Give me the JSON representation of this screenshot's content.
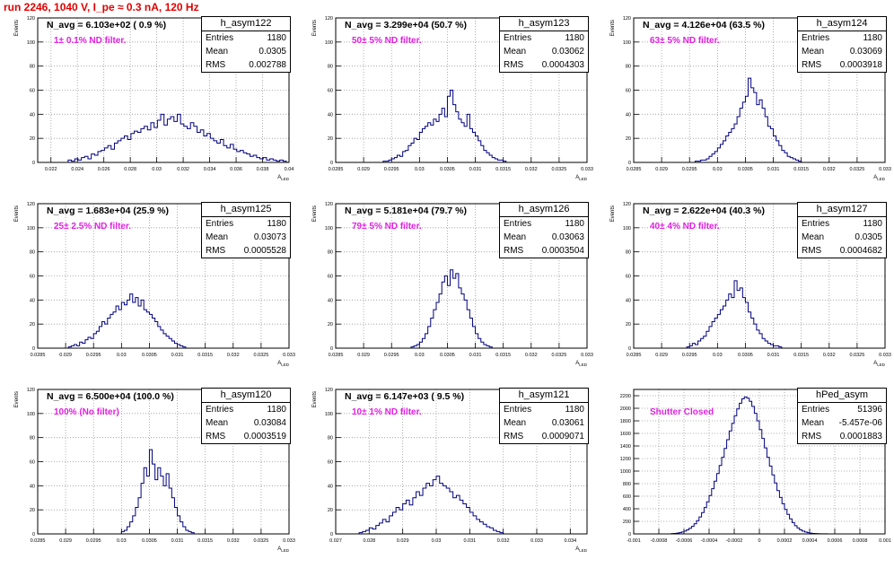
{
  "page_title": "run 2246,  1040 V, I_pe ≈ 0.3 nA, 120 Hz",
  "colors": {
    "title": "#e00000",
    "line": "#000080",
    "filter_text": "#e020e0"
  },
  "chart_data": [
    {
      "type": "histogram",
      "name": "h_asym122",
      "ylabel": "Events",
      "xlabel": "A_{LED}",
      "xlim": [
        0.021,
        0.04
      ],
      "ylim": [
        0,
        120
      ],
      "x_ticks": [
        "0.022",
        "0.024",
        "0.026",
        "0.028",
        "0.03",
        "0.032",
        "0.034",
        "0.036",
        "0.038",
        "0.04"
      ],
      "x_tick_values": [
        0.022,
        0.024,
        0.026,
        0.028,
        0.03,
        0.032,
        0.034,
        0.036,
        0.038,
        0.04
      ],
      "y_ticks": [
        "0",
        "20",
        "40",
        "60",
        "80",
        "100",
        "120"
      ],
      "y_tick_values": [
        0,
        20,
        40,
        60,
        80,
        100,
        120
      ],
      "annotation_navg": "N_avg = 6.103e+02 ( 0.9 %)",
      "annotation_filter": "1± 0.1% ND filter.",
      "stats": {
        "entries": "1180",
        "mean": "0.0305",
        "rms": "0.002788"
      },
      "bins": {
        "start": 0.0233,
        "width": 0.00025,
        "counts": [
          2,
          1,
          3,
          2,
          4,
          5,
          3,
          7,
          6,
          9,
          10,
          12,
          14,
          11,
          16,
          18,
          20,
          22,
          19,
          24,
          26,
          25,
          28,
          30,
          27,
          33,
          29,
          35,
          40,
          31,
          36,
          38,
          34,
          40,
          32,
          30,
          28,
          33,
          30,
          25,
          27,
          22,
          24,
          20,
          18,
          16,
          19,
          14,
          12,
          15,
          11,
          9,
          10,
          8,
          7,
          5,
          6,
          4,
          3,
          4,
          2,
          3,
          2,
          1,
          2,
          1
        ]
      }
    },
    {
      "type": "histogram",
      "name": "h_asym123",
      "ylabel": "Events",
      "xlabel": "A_{LED}",
      "xlim": [
        0.0285,
        0.033
      ],
      "ylim": [
        0,
        120
      ],
      "x_ticks": [
        "0.0285",
        "0.029",
        "0.0295",
        "0.03",
        "0.0305",
        "0.031",
        "0.0315",
        "0.032",
        "0.0325",
        "0.033"
      ],
      "x_tick_values": [
        0.0285,
        0.029,
        0.0295,
        0.03,
        0.0305,
        0.031,
        0.0315,
        0.032,
        0.0325,
        0.033
      ],
      "y_ticks": [
        "0",
        "20",
        "40",
        "60",
        "80",
        "100",
        "120"
      ],
      "y_tick_values": [
        0,
        20,
        40,
        60,
        80,
        100,
        120
      ],
      "annotation_navg": "N_avg = 3.299e+04 (50.7 %)",
      "annotation_filter": "50± 5% ND filter.",
      "stats": {
        "entries": "1180",
        "mean": "0.03062",
        "rms": "0.0004303"
      },
      "bins": {
        "start": 0.02935,
        "width": 5e-05,
        "counts": [
          1,
          1,
          2,
          3,
          4,
          6,
          5,
          9,
          10,
          14,
          16,
          20,
          19,
          25,
          28,
          30,
          33,
          31,
          36,
          34,
          40,
          45,
          38,
          55,
          60,
          48,
          42,
          36,
          33,
          30,
          40,
          28,
          25,
          22,
          18,
          14,
          10,
          8,
          6,
          4,
          3,
          2,
          2,
          1
        ]
      }
    },
    {
      "type": "histogram",
      "name": "h_asym124",
      "ylabel": "Events",
      "xlabel": "A_{LED}",
      "xlim": [
        0.0285,
        0.033
      ],
      "ylim": [
        0,
        120
      ],
      "x_ticks": [
        "0.0285",
        "0.029",
        "0.0295",
        "0.03",
        "0.0305",
        "0.031",
        "0.0315",
        "0.032",
        "0.0325",
        "0.033"
      ],
      "x_tick_values": [
        0.0285,
        0.029,
        0.0295,
        0.03,
        0.0305,
        0.031,
        0.0315,
        0.032,
        0.0325,
        0.033
      ],
      "y_ticks": [
        "0",
        "20",
        "40",
        "60",
        "80",
        "100",
        "120"
      ],
      "y_tick_values": [
        0,
        20,
        40,
        60,
        80,
        100,
        120
      ],
      "annotation_navg": "N_avg = 4.126e+04 (63.5 %)",
      "annotation_filter": "63± 5% ND filter.",
      "stats": {
        "entries": "1180",
        "mean": "0.03069",
        "rms": "0.0003918"
      },
      "bins": {
        "start": 0.0296,
        "width": 5e-05,
        "counts": [
          1,
          1,
          2,
          2,
          3,
          5,
          7,
          9,
          12,
          15,
          18,
          22,
          25,
          28,
          32,
          38,
          45,
          50,
          55,
          70,
          62,
          58,
          48,
          52,
          45,
          38,
          30,
          28,
          22,
          18,
          14,
          10,
          8,
          5,
          4,
          3,
          2,
          1
        ]
      }
    },
    {
      "type": "histogram",
      "name": "h_asym125",
      "ylabel": "Events",
      "xlabel": "A_{LED}",
      "xlim": [
        0.0285,
        0.033
      ],
      "ylim": [
        0,
        120
      ],
      "x_ticks": [
        "0.0285",
        "0.029",
        "0.0295",
        "0.03",
        "0.0305",
        "0.031",
        "0.0315",
        "0.032",
        "0.0325",
        "0.033"
      ],
      "x_tick_values": [
        0.0285,
        0.029,
        0.0295,
        0.03,
        0.0305,
        0.031,
        0.0315,
        0.032,
        0.0325,
        0.033
      ],
      "y_ticks": [
        "0",
        "20",
        "40",
        "60",
        "80",
        "100",
        "120"
      ],
      "y_tick_values": [
        0,
        20,
        40,
        60,
        80,
        100,
        120
      ],
      "annotation_navg": "N_avg = 1.683e+04 (25.9 %)",
      "annotation_filter": "25± 2.5% ND filter.",
      "stats": {
        "entries": "1180",
        "mean": "0.03073",
        "rms": "0.0005528"
      },
      "bins": {
        "start": 0.02905,
        "width": 5e-05,
        "counts": [
          1,
          2,
          3,
          2,
          5,
          4,
          7,
          9,
          8,
          12,
          14,
          18,
          22,
          20,
          25,
          28,
          30,
          35,
          32,
          38,
          36,
          40,
          45,
          38,
          42,
          35,
          40,
          32,
          30,
          28,
          25,
          22,
          18,
          15,
          12,
          10,
          8,
          6,
          4,
          3,
          2,
          1
        ]
      }
    },
    {
      "type": "histogram",
      "name": "h_asym126",
      "ylabel": "Events",
      "xlabel": "A_{LED}",
      "xlim": [
        0.0285,
        0.033
      ],
      "ylim": [
        0,
        120
      ],
      "x_ticks": [
        "0.0285",
        "0.029",
        "0.0295",
        "0.03",
        "0.0305",
        "0.031",
        "0.0315",
        "0.032",
        "0.0325",
        "0.033"
      ],
      "x_tick_values": [
        0.0285,
        0.029,
        0.0295,
        0.03,
        0.0305,
        0.031,
        0.0315,
        0.032,
        0.0325,
        0.033
      ],
      "y_ticks": [
        "0",
        "20",
        "40",
        "60",
        "80",
        "100",
        "120"
      ],
      "y_tick_values": [
        0,
        20,
        40,
        60,
        80,
        100,
        120
      ],
      "annotation_navg": "N_avg = 5.181e+04 (79.7 %)",
      "annotation_filter": "79± 5% ND filter.",
      "stats": {
        "entries": "1180",
        "mean": "0.03063",
        "rms": "0.0003504"
      },
      "bins": {
        "start": 0.02985,
        "width": 5e-05,
        "counts": [
          1,
          2,
          3,
          5,
          8,
          12,
          18,
          25,
          32,
          38,
          45,
          55,
          60,
          52,
          65,
          58,
          62,
          50,
          45,
          40,
          32,
          25,
          18,
          12,
          8,
          5,
          3,
          2,
          1
        ]
      }
    },
    {
      "type": "histogram",
      "name": "h_asym127",
      "ylabel": "Events",
      "xlabel": "A_{LED}",
      "xlim": [
        0.0285,
        0.033
      ],
      "ylim": [
        0,
        120
      ],
      "x_ticks": [
        "0.0285",
        "0.029",
        "0.0295",
        "0.03",
        "0.0305",
        "0.031",
        "0.0315",
        "0.032",
        "0.0325",
        "0.033"
      ],
      "x_tick_values": [
        0.0285,
        0.029,
        0.0295,
        0.03,
        0.0305,
        0.031,
        0.0315,
        0.032,
        0.0325,
        0.033
      ],
      "y_ticks": [
        "0",
        "20",
        "40",
        "60",
        "80",
        "100",
        "120"
      ],
      "y_tick_values": [
        0,
        20,
        40,
        60,
        80,
        100,
        120
      ],
      "annotation_navg": "N_avg = 2.622e+04 (40.3 %)",
      "annotation_filter": "40± 4% ND filter.",
      "stats": {
        "entries": "1180",
        "mean": "0.0305",
        "rms": "0.0004682"
      },
      "bins": {
        "start": 0.02945,
        "width": 5e-05,
        "counts": [
          1,
          2,
          4,
          3,
          6,
          8,
          10,
          14,
          18,
          22,
          25,
          28,
          32,
          35,
          40,
          45,
          42,
          56,
          48,
          50,
          42,
          38,
          30,
          25,
          20,
          15,
          12,
          8,
          6,
          4,
          3,
          2,
          2,
          1
        ]
      }
    },
    {
      "type": "histogram",
      "name": "h_asym120",
      "ylabel": "Events",
      "xlabel": "A_{LED}",
      "xlim": [
        0.0285,
        0.033
      ],
      "ylim": [
        0,
        120
      ],
      "x_ticks": [
        "0.0285",
        "0.029",
        "0.0295",
        "0.03",
        "0.0305",
        "0.031",
        "0.0315",
        "0.032",
        "0.0325",
        "0.033"
      ],
      "x_tick_values": [
        0.0285,
        0.029,
        0.0295,
        0.03,
        0.0305,
        0.031,
        0.0315,
        0.032,
        0.0325,
        0.033
      ],
      "y_ticks": [
        "0",
        "20",
        "40",
        "60",
        "80",
        "100",
        "120"
      ],
      "y_tick_values": [
        0,
        20,
        40,
        60,
        80,
        100,
        120
      ],
      "annotation_navg": "N_avg = 6.500e+04 (100.0 %)",
      "annotation_filter": "100% (No filter)",
      "stats": {
        "entries": "1180",
        "mean": "0.03084",
        "rms": "0.0003519"
      },
      "bins": {
        "start": 0.03,
        "width": 5e-05,
        "counts": [
          2,
          3,
          6,
          10,
          15,
          22,
          30,
          42,
          55,
          48,
          70,
          58,
          45,
          55,
          48,
          40,
          50,
          38,
          30,
          22,
          15,
          10,
          6,
          3,
          2,
          1
        ]
      }
    },
    {
      "type": "histogram",
      "name": "h_asym121",
      "ylabel": "Events",
      "xlabel": "A_{LED}",
      "xlim": [
        0.027,
        0.0345
      ],
      "ylim": [
        0,
        120
      ],
      "x_ticks": [
        "0.027",
        "0.028",
        "0.029",
        "0.03",
        "0.031",
        "0.032",
        "0.033",
        "0.034"
      ],
      "x_tick_values": [
        0.027,
        0.028,
        0.029,
        0.03,
        0.031,
        0.032,
        0.033,
        0.034
      ],
      "y_ticks": [
        "0",
        "20",
        "40",
        "60",
        "80",
        "100",
        "120"
      ],
      "y_tick_values": [
        0,
        20,
        40,
        60,
        80,
        100,
        120
      ],
      "annotation_navg": "N_avg = 6.147e+03 ( 9.5 %)",
      "annotation_filter": "10± 1% ND filter.",
      "stats": {
        "entries": "1180",
        "mean": "0.03061",
        "rms": "0.0009071"
      },
      "bins": {
        "start": 0.0277,
        "width": 0.0001,
        "counts": [
          1,
          2,
          3,
          5,
          4,
          7,
          9,
          12,
          10,
          15,
          18,
          22,
          20,
          25,
          28,
          24,
          30,
          35,
          32,
          38,
          42,
          40,
          45,
          48,
          42,
          40,
          38,
          35,
          30,
          32,
          28,
          25,
          22,
          18,
          15,
          12,
          10,
          8,
          6,
          5,
          3,
          2,
          1
        ]
      }
    },
    {
      "type": "histogram",
      "name": "hPed_asym",
      "ylabel": "",
      "xlabel": "",
      "xlim": [
        -0.001,
        0.001
      ],
      "ylim": [
        0,
        2300
      ],
      "x_ticks": [
        "-0.001",
        "-0.0008",
        "-0.0006",
        "-0.0004",
        "-0.0002",
        "0",
        "0.0002",
        "0.0004",
        "0.0006",
        "0.0008",
        "0.001"
      ],
      "x_tick_values": [
        -0.001,
        -0.0008,
        -0.0006,
        -0.0004,
        -0.0002,
        0,
        0.0002,
        0.0004,
        0.0006,
        0.0008,
        0.001
      ],
      "y_ticks": [
        "0",
        "200",
        "400",
        "600",
        "800",
        "1000",
        "1200",
        "1400",
        "1600",
        "1800",
        "2000",
        "2200"
      ],
      "y_tick_values": [
        0,
        200,
        400,
        600,
        800,
        1000,
        1200,
        1400,
        1600,
        1800,
        2000,
        2200
      ],
      "annotation_navg": "",
      "annotation_filter": "Shutter Closed",
      "stats": {
        "entries": "51396",
        "mean": "-5.457e-06",
        "rms": "0.0001883"
      },
      "bins": {
        "start": -0.0007,
        "width": 2e-05,
        "counts": [
          5,
          8,
          12,
          20,
          30,
          45,
          65,
          90,
          120,
          160,
          210,
          270,
          340,
          420,
          510,
          610,
          720,
          840,
          960,
          1090,
          1220,
          1360,
          1500,
          1640,
          1760,
          1880,
          1990,
          2080,
          2150,
          2180,
          2160,
          2110,
          2030,
          1920,
          1800,
          1660,
          1520,
          1370,
          1220,
          1080,
          940,
          810,
          690,
          580,
          480,
          390,
          310,
          240,
          180,
          130,
          95,
          65,
          45,
          30,
          20,
          12,
          8,
          5,
          3,
          2,
          1,
          1
        ]
      }
    }
  ]
}
